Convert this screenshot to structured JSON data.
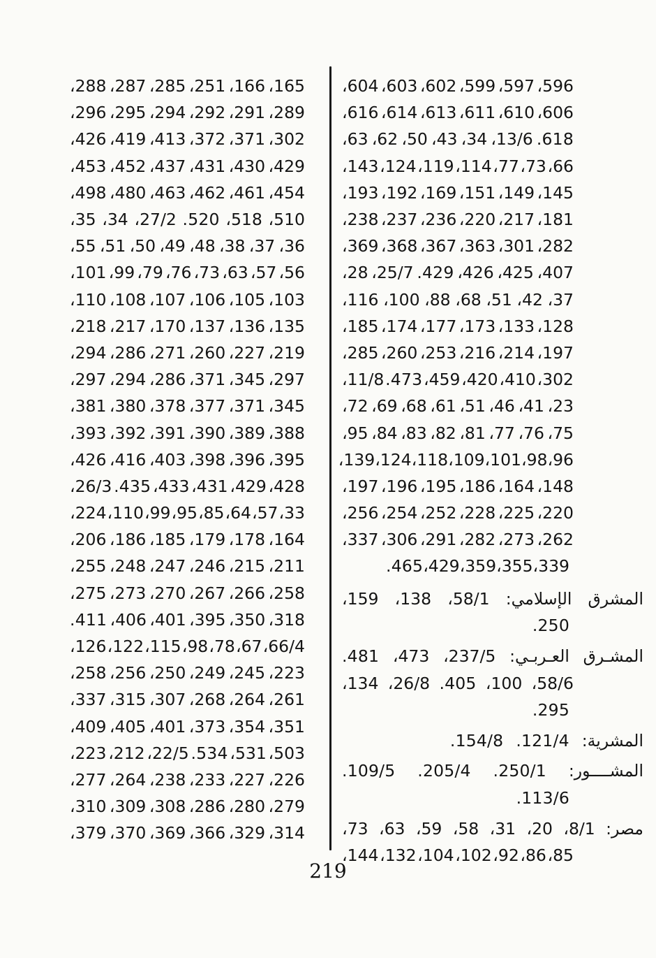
{
  "page_number": "219",
  "colors": {
    "text": "#141414",
    "background": "#fbfbf8",
    "divider": "#191919"
  },
  "left_column": {
    "rows": [
      {
        "kind": "num",
        "t": [
          "165،",
          "166،",
          "251،",
          "285،",
          "287،",
          "288،"
        ]
      },
      {
        "kind": "num",
        "t": [
          "289،",
          "291،",
          "292،",
          "294،",
          "295،",
          "296،"
        ]
      },
      {
        "kind": "num",
        "t": [
          "302،",
          "371،",
          "372،",
          "413،",
          "419،",
          "426،"
        ]
      },
      {
        "kind": "num",
        "t": [
          "429،",
          "430،",
          "431،",
          "437،",
          "452،",
          "453،"
        ]
      },
      {
        "kind": "num",
        "t": [
          "454،",
          "461،",
          "462،",
          "463،",
          "480،",
          "498،"
        ]
      },
      {
        "kind": "num",
        "t": [
          "510،",
          "518،",
          "520.",
          "27/2،",
          "34،",
          "35،"
        ]
      },
      {
        "kind": "num",
        "t": [
          "36،",
          "37،",
          "38،",
          "48،",
          "49،",
          "50،",
          "51،",
          "55،"
        ]
      },
      {
        "kind": "num",
        "t": [
          "56،",
          "57،",
          "63،",
          "73،",
          "76،",
          "79،",
          "99،",
          "101،"
        ]
      },
      {
        "kind": "num",
        "t": [
          "103،",
          "105،",
          "106،",
          "107،",
          "108،",
          "110،"
        ]
      },
      {
        "kind": "num",
        "t": [
          "135،",
          "136،",
          "137،",
          "170،",
          "217،",
          "218،"
        ]
      },
      {
        "kind": "num",
        "t": [
          "219،",
          "227،",
          "260،",
          "271،",
          "286،",
          "294،"
        ]
      },
      {
        "kind": "num",
        "t": [
          "297،",
          "345،",
          "371،",
          "286،",
          "294،",
          "297،"
        ]
      },
      {
        "kind": "num",
        "t": [
          "345،",
          "371،",
          "377،",
          "378،",
          "380،",
          "381،"
        ]
      },
      {
        "kind": "num",
        "t": [
          "388،",
          "389،",
          "390،",
          "391،",
          "392،",
          "393،"
        ]
      },
      {
        "kind": "num",
        "t": [
          "395،",
          "396،",
          "398،",
          "403،",
          "416،",
          "426،"
        ]
      },
      {
        "kind": "num",
        "t": [
          "428،",
          "429،",
          "431،",
          "433،",
          "435.",
          "26/3،"
        ]
      },
      {
        "kind": "num",
        "t": [
          "33،",
          "57،",
          "64،",
          "85،",
          "95،",
          "99،",
          "110،",
          "224،"
        ]
      },
      {
        "kind": "num",
        "t": [
          "164،",
          "178،",
          "179،",
          "185،",
          "186،",
          "206،"
        ]
      },
      {
        "kind": "num",
        "t": [
          "211،",
          "215،",
          "246،",
          "247،",
          "248،",
          "255،"
        ]
      },
      {
        "kind": "num",
        "t": [
          "258،",
          "266،",
          "267،",
          "270،",
          "273،",
          "275،"
        ]
      },
      {
        "kind": "num",
        "t": [
          "318،",
          "350،",
          "395،",
          "401،",
          "406،",
          "411."
        ]
      },
      {
        "kind": "num",
        "t": [
          "66/4،",
          "67،",
          "78،",
          "98،",
          "115،",
          "122،",
          "126،"
        ]
      },
      {
        "kind": "num",
        "t": [
          "223،",
          "245،",
          "249،",
          "250،",
          "256،",
          "258،"
        ]
      },
      {
        "kind": "num",
        "t": [
          "261،",
          "264،",
          "268،",
          "307،",
          "315،",
          "337،"
        ]
      },
      {
        "kind": "num",
        "t": [
          "351،",
          "354،",
          "373،",
          "401،",
          "405،",
          "409،"
        ]
      },
      {
        "kind": "num",
        "t": [
          "503،",
          "531،",
          "534.",
          "22/5،",
          "212،",
          "223،"
        ]
      },
      {
        "kind": "num",
        "t": [
          "226،",
          "227،",
          "233،",
          "238،",
          "264،",
          "277،"
        ]
      },
      {
        "kind": "num",
        "t": [
          "279،",
          "280،",
          "286،",
          "308،",
          "309،",
          "310،"
        ]
      },
      {
        "kind": "num",
        "t": [
          "314،",
          "329،",
          "366،",
          "369،",
          "370،",
          "379،"
        ]
      }
    ]
  },
  "right_column": {
    "rows": [
      {
        "kind": "num",
        "t": [
          "596،",
          "597،",
          "599،",
          "602،",
          "603،",
          "604،"
        ]
      },
      {
        "kind": "num",
        "t": [
          "606،",
          "610،",
          "611،",
          "613،",
          "614،",
          "616،"
        ]
      },
      {
        "kind": "num",
        "t": [
          "618.",
          "13/6،",
          "34،",
          "43،",
          "50،",
          "62،",
          "63،"
        ]
      },
      {
        "kind": "num",
        "t": [
          "66،",
          "73،",
          "77،",
          "114،",
          "119،",
          "124،",
          "143،"
        ]
      },
      {
        "kind": "num",
        "t": [
          "145،",
          "149،",
          "151،",
          "169،",
          "192،",
          "193،"
        ]
      },
      {
        "kind": "num",
        "t": [
          "181،",
          "217،",
          "220،",
          "236،",
          "237،",
          "238،"
        ]
      },
      {
        "kind": "num",
        "t": [
          "282،",
          "301،",
          "363،",
          "367،",
          "368،",
          "369،"
        ]
      },
      {
        "kind": "num",
        "t": [
          "407،",
          "425،",
          "426،",
          "429.",
          "25/7،",
          "28،"
        ]
      },
      {
        "kind": "num",
        "t": [
          "37،",
          "42،",
          "51،",
          "68،",
          "88،",
          "100،",
          "116،"
        ]
      },
      {
        "kind": "num",
        "t": [
          "128،",
          "133،",
          "173،",
          "177،",
          "174،",
          "185،"
        ]
      },
      {
        "kind": "num",
        "t": [
          "197،",
          "214،",
          "216،",
          "253،",
          "260،",
          "285،"
        ]
      },
      {
        "kind": "num",
        "t": [
          "302،",
          "410،",
          "420،",
          "459،",
          "473.",
          "11/8،"
        ]
      },
      {
        "kind": "num",
        "t": [
          "23،",
          "41،",
          "46،",
          "51،",
          "61،",
          "68،",
          "69،",
          "72،"
        ]
      },
      {
        "kind": "num",
        "t": [
          "75،",
          "76،",
          "77،",
          "81،",
          "82،",
          "83،",
          "84،",
          "95،"
        ]
      },
      {
        "kind": "num",
        "t": [
          "96،",
          "98،",
          "101،",
          "109،",
          "118،",
          "124،",
          "139،"
        ]
      },
      {
        "kind": "num",
        "t": [
          "148،",
          "164،",
          "186،",
          "195،",
          "196،",
          "197،"
        ]
      },
      {
        "kind": "num",
        "t": [
          "220،",
          "225،",
          "228،",
          "252،",
          "254،",
          "256،"
        ]
      },
      {
        "kind": "num",
        "t": [
          "262،",
          "273،",
          "282،",
          "291،",
          "306،",
          "337،"
        ]
      },
      {
        "kind": "num-end",
        "t": [
          "339،",
          "355،",
          "359،",
          "429،",
          "465."
        ]
      }
    ],
    "entries": [
      {
        "lines": [
          {
            "kind": "head",
            "t": [
              "المشرق",
              "الإسلامي:",
              "58/1،",
              "138،",
              "159،"
            ]
          },
          {
            "kind": "cont-end",
            "t": [
              "250."
            ]
          }
        ]
      },
      {
        "lines": [
          {
            "kind": "head",
            "t": [
              "المشـرق",
              "العـربـي:",
              "237/5،",
              "473،",
              "481."
            ]
          },
          {
            "kind": "cont",
            "t": [
              "58/6،",
              "100،",
              "405.",
              "26/8،",
              "134،"
            ]
          },
          {
            "kind": "cont-end",
            "t": [
              "295."
            ]
          }
        ]
      },
      {
        "lines": [
          {
            "kind": "head-plain",
            "t": [
              "المشرية:",
              "121/4.",
              "154/8."
            ]
          }
        ]
      },
      {
        "lines": [
          {
            "kind": "head",
            "t": [
              "المشــــور:",
              "250/1.",
              "205/4.",
              "109/5."
            ]
          },
          {
            "kind": "cont-end",
            "t": [
              "113/6."
            ]
          }
        ]
      },
      {
        "lines": [
          {
            "kind": "head",
            "t": [
              "مصر:",
              "8/1،",
              "20،",
              "31،",
              "58،",
              "59،",
              "63،",
              "73،"
            ]
          },
          {
            "kind": "cont",
            "t": [
              "85،",
              "86،",
              "92،",
              "102،",
              "104،",
              "132،",
              "144،"
            ]
          }
        ]
      }
    ]
  }
}
